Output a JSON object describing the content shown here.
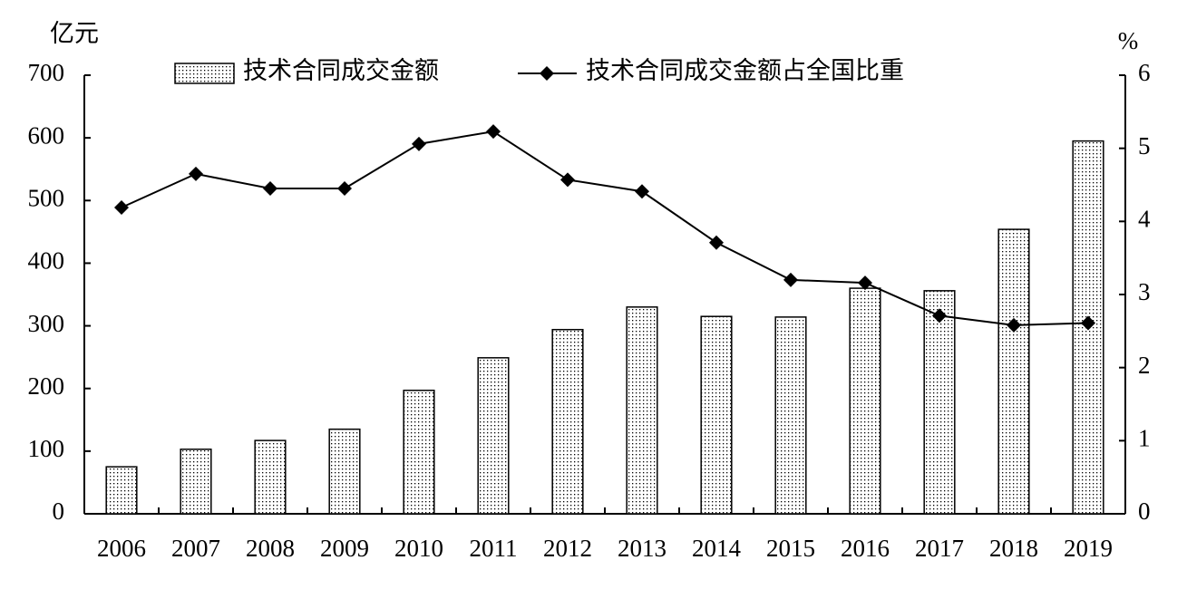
{
  "chart_data": {
    "type": "bar-line",
    "y_label": "亿元",
    "y2_label": "%",
    "categories": [
      "2006",
      "2007",
      "2008",
      "2009",
      "2010",
      "2011",
      "2012",
      "2013",
      "2014",
      "2015",
      "2016",
      "2017",
      "2018",
      "2019"
    ],
    "series": [
      {
        "name": "技术合同成交金额",
        "type": "bar",
        "color": "#000000",
        "axis": "y",
        "values": [
          75,
          103,
          117,
          135,
          197,
          249,
          294,
          330,
          315,
          314,
          360,
          356,
          454,
          595
        ]
      },
      {
        "name": "技术合同成交金额占全国比重",
        "type": "line",
        "color": "#000000",
        "axis": "y2",
        "values": [
          4.19,
          4.65,
          4.45,
          4.45,
          5.06,
          5.23,
          4.57,
          4.41,
          3.71,
          3.2,
          3.16,
          2.71,
          2.58,
          2.61
        ]
      }
    ],
    "ylim": [
      0,
      700
    ],
    "yticks": [
      0,
      100,
      200,
      300,
      400,
      500,
      600,
      700
    ],
    "y2lim": [
      0,
      6
    ],
    "y2ticks": [
      0,
      1,
      2,
      3,
      4,
      5,
      6
    ],
    "legend": "top"
  }
}
